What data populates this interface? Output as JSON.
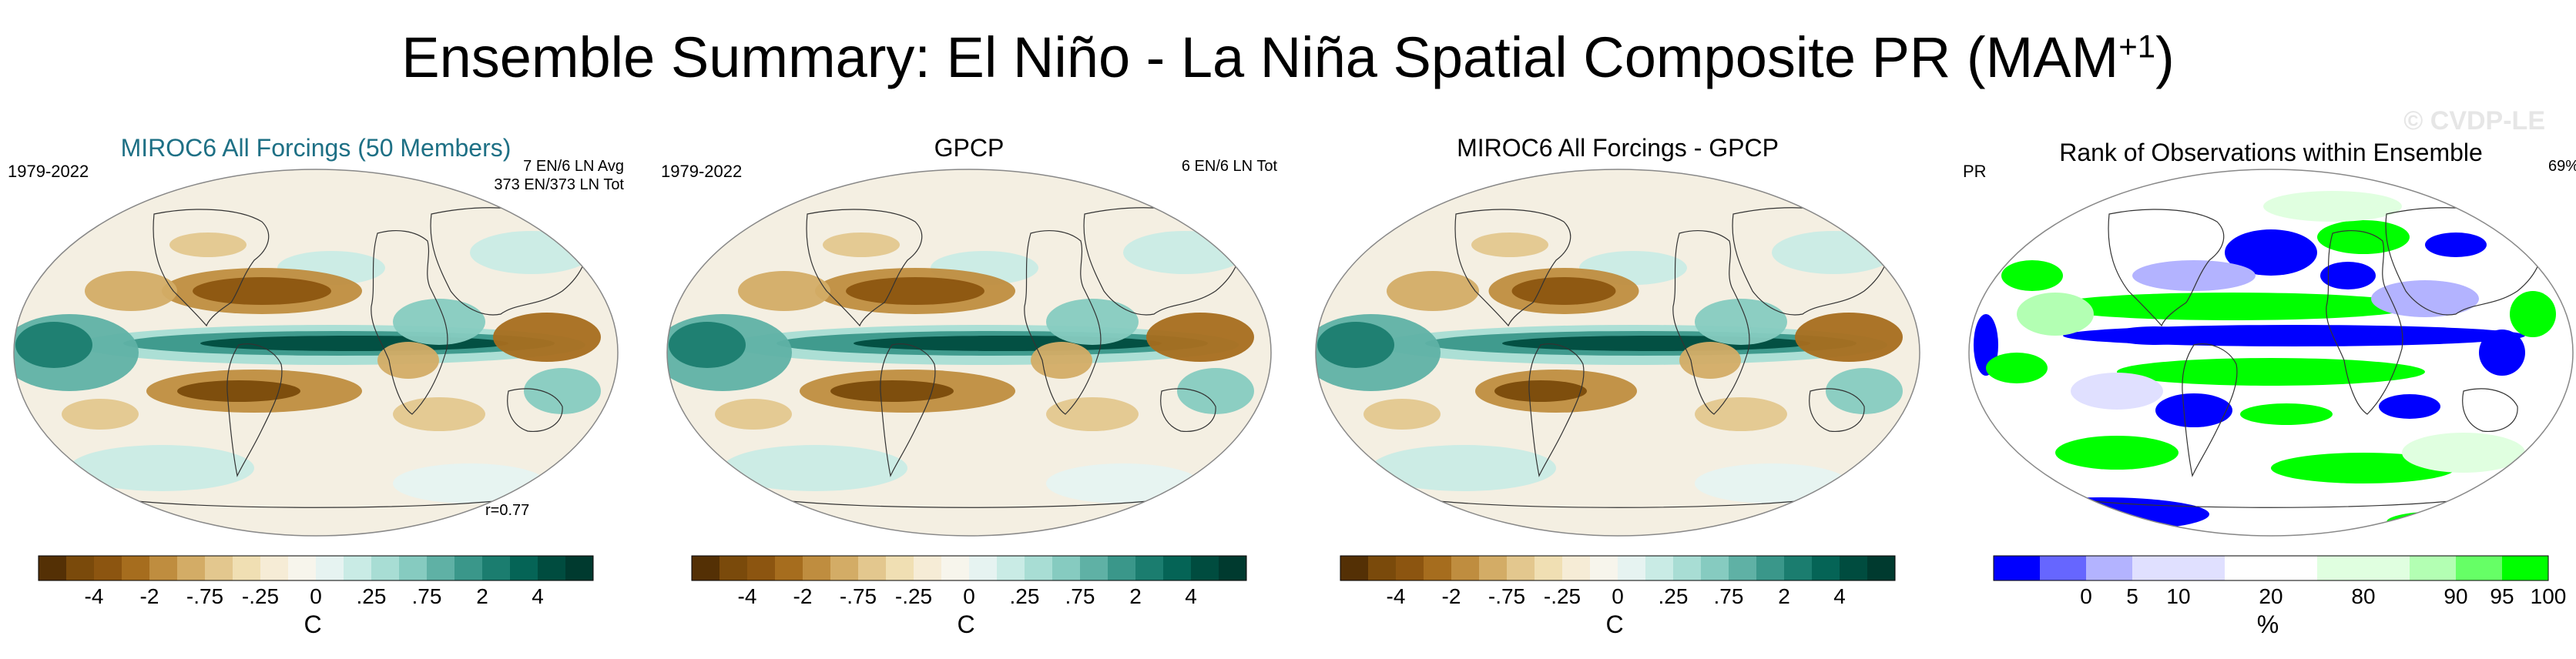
{
  "title": {
    "main": "Ensemble Summary: El Niño - La Niña Spatial Composite PR (MAM",
    "superscript": "+1",
    "close": ")"
  },
  "watermark": "© CVDP-LE",
  "panels": [
    {
      "title": "MIROC6 All Forcings (50 Members)",
      "left_label": "1979-2022",
      "right_label_1": "7 EN/6 LN Avg",
      "right_label_2": "373 EN/373 LN Tot",
      "corr": "r=0.77"
    },
    {
      "title": "GPCP",
      "left_label": "1979-2022",
      "right_label_1": "6 EN/6 LN Tot"
    },
    {
      "title": "MIROC6 All Forcings - GPCP"
    },
    {
      "title": "Rank of Observations within Ensemble",
      "left_label": "PR",
      "right_label_1": "69%"
    }
  ],
  "colorbars": {
    "diverging": {
      "colors": [
        "#543005",
        "#7a4a0b",
        "#8c5510",
        "#a66d1e",
        "#bf8d3f",
        "#d3ac66",
        "#e3c78e",
        "#f0dfb3",
        "#f6ecd6",
        "#f7f5ec",
        "#e6f3f1",
        "#c9ebe5",
        "#a8ddd4",
        "#86cbc0",
        "#5fb1a5",
        "#3a978a",
        "#1b7d6f",
        "#056456",
        "#004c3f",
        "#003a2f"
      ],
      "ticks": [
        "-4",
        "-2",
        "-.75",
        "-.25",
        "0",
        ".25",
        ".75",
        "2",
        "4"
      ],
      "unit": "C"
    },
    "rank": {
      "colors": [
        "#0000ff",
        "#6666ff",
        "#b3b3ff",
        "#e0e0ff",
        "#e0e0ff",
        "#ffffff",
        "#ffffff",
        "#e0ffe0",
        "#e0ffe0",
        "#b3ffb3",
        "#66ff66",
        "#00ff00"
      ],
      "ticks": [
        "0",
        "5",
        "10",
        "20",
        "80",
        "90",
        "95",
        "100"
      ],
      "unit": "%"
    }
  }
}
